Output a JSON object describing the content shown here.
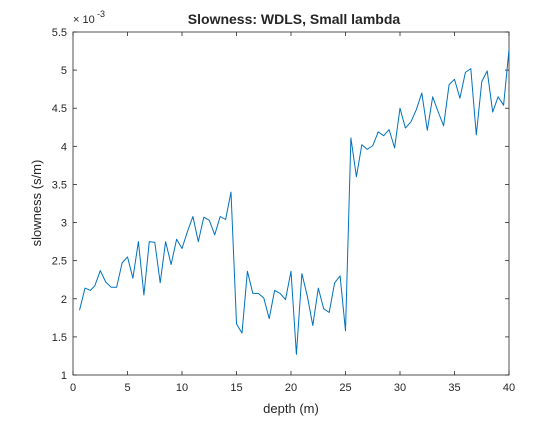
{
  "chart_data": {
    "type": "line",
    "title": "Slowness: WDLS, Small lambda",
    "xlabel": "depth (m)",
    "ylabel": "slowness (s/m)",
    "y_exponent_label": "× 10",
    "y_exponent_power": "-3",
    "xlim": [
      0,
      40
    ],
    "ylim": [
      1,
      5.5
    ],
    "xticks": [
      0,
      5,
      10,
      15,
      20,
      25,
      30,
      35,
      40
    ],
    "xtick_labels": [
      "0",
      "5",
      "10",
      "15",
      "20",
      "25",
      "30",
      "35",
      "40"
    ],
    "yticks": [
      1,
      1.5,
      2,
      2.5,
      3,
      3.5,
      4,
      4.5,
      5,
      5.5
    ],
    "ytick_labels": [
      "1",
      "1.5",
      "2",
      "2.5",
      "3",
      "3.5",
      "4",
      "4.5",
      "5",
      "5.5"
    ],
    "grid": false,
    "line_color": "#0072BD",
    "x": [
      0.6,
      1.1,
      1.6,
      2.0,
      2.5,
      3.0,
      3.5,
      4.0,
      4.5,
      5.0,
      5.5,
      6.0,
      6.5,
      7.0,
      7.5,
      8.0,
      8.5,
      9.0,
      9.5,
      10.0,
      10.5,
      11.0,
      11.5,
      12.0,
      12.5,
      13.0,
      13.5,
      14.0,
      14.5,
      15.0,
      15.5,
      16.0,
      16.5,
      17.0,
      17.5,
      18.0,
      18.5,
      19.0,
      19.5,
      20.0,
      20.5,
      21.0,
      21.5,
      22.0,
      22.5,
      23.0,
      23.5,
      24.0,
      24.5,
      25.0,
      25.5,
      26.0,
      26.5,
      27.0,
      27.5,
      28.0,
      28.5,
      29.0,
      29.5,
      30.0,
      30.5,
      31.0,
      31.5,
      32.0,
      32.5,
      33.0,
      33.5,
      34.0,
      34.5,
      35.0,
      35.5,
      36.0,
      36.5,
      37.0,
      37.5,
      38.0,
      38.5,
      39.0,
      39.5,
      40.0
    ],
    "values": [
      1.85,
      2.14,
      2.11,
      2.17,
      2.37,
      2.22,
      2.15,
      2.15,
      2.47,
      2.55,
      2.27,
      2.75,
      2.05,
      2.75,
      2.74,
      2.21,
      2.75,
      2.45,
      2.78,
      2.66,
      2.88,
      3.08,
      2.75,
      3.07,
      3.03,
      2.84,
      3.08,
      3.04,
      3.4,
      1.67,
      1.55,
      2.36,
      2.07,
      2.07,
      2.01,
      1.74,
      2.11,
      2.07,
      1.99,
      2.36,
      1.27,
      2.33,
      2.03,
      1.65,
      2.14,
      1.87,
      1.82,
      2.21,
      2.3,
      1.58,
      4.11,
      3.6,
      4.02,
      3.96,
      4.01,
      4.19,
      4.14,
      4.22,
      3.98,
      4.5,
      4.24,
      4.32,
      4.48,
      4.7,
      4.21,
      4.65,
      4.45,
      4.27,
      4.81,
      4.88,
      4.63,
      4.97,
      5.02,
      4.15,
      4.85,
      4.99,
      4.45,
      4.65,
      4.54,
      5.27
    ]
  }
}
